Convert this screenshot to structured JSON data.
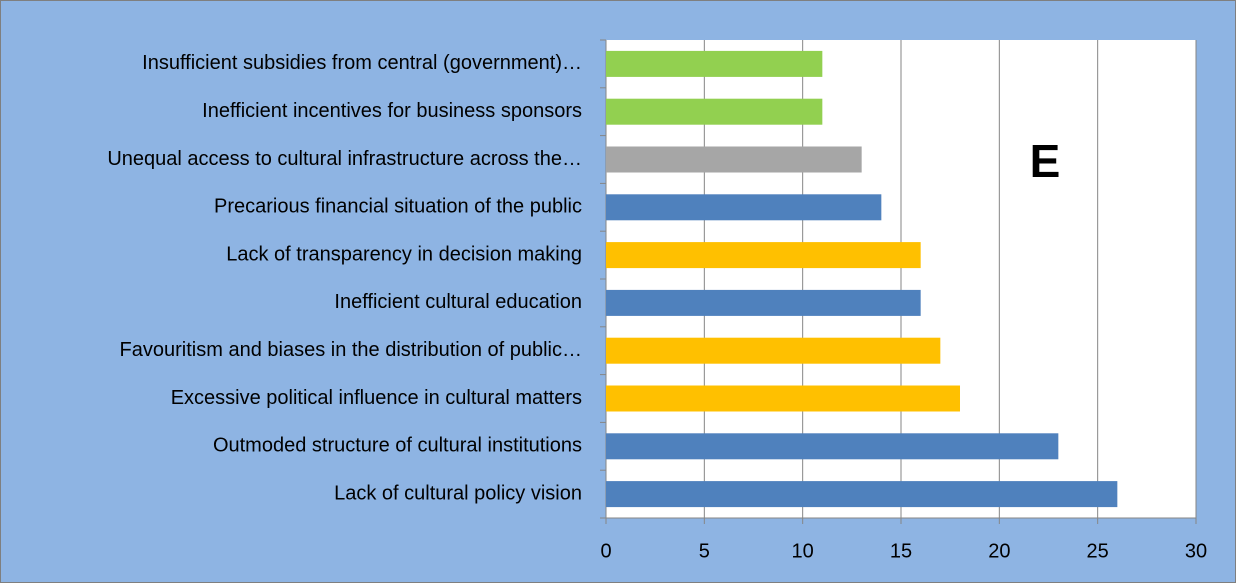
{
  "chart_data": {
    "type": "bar",
    "orientation": "horizontal",
    "categories": [
      "Insufficient subsidies from central (government)…",
      "Inefficient incentives for business sponsors",
      "Unequal access to cultural infrastructure across the…",
      "Precarious financial situation of the public",
      "Lack of transparency in decision making",
      "Inefficient cultural education",
      "Favouritism and biases in the distribution of public…",
      "Excessive political influence in cultural matters",
      "Outmoded structure of cultural institutions",
      "Lack of cultural policy vision"
    ],
    "values": [
      11,
      11,
      13,
      14,
      16,
      16,
      17,
      18,
      23,
      26
    ],
    "colors": [
      "#92d050",
      "#92d050",
      "#a6a6a6",
      "#4f81bd",
      "#ffc000",
      "#4f81bd",
      "#ffc000",
      "#ffc000",
      "#4f81bd",
      "#4f81bd"
    ],
    "xlim": [
      0,
      30
    ],
    "xticks": [
      0,
      5,
      10,
      15,
      20,
      25,
      30
    ],
    "grid": true,
    "annotation": "E"
  }
}
